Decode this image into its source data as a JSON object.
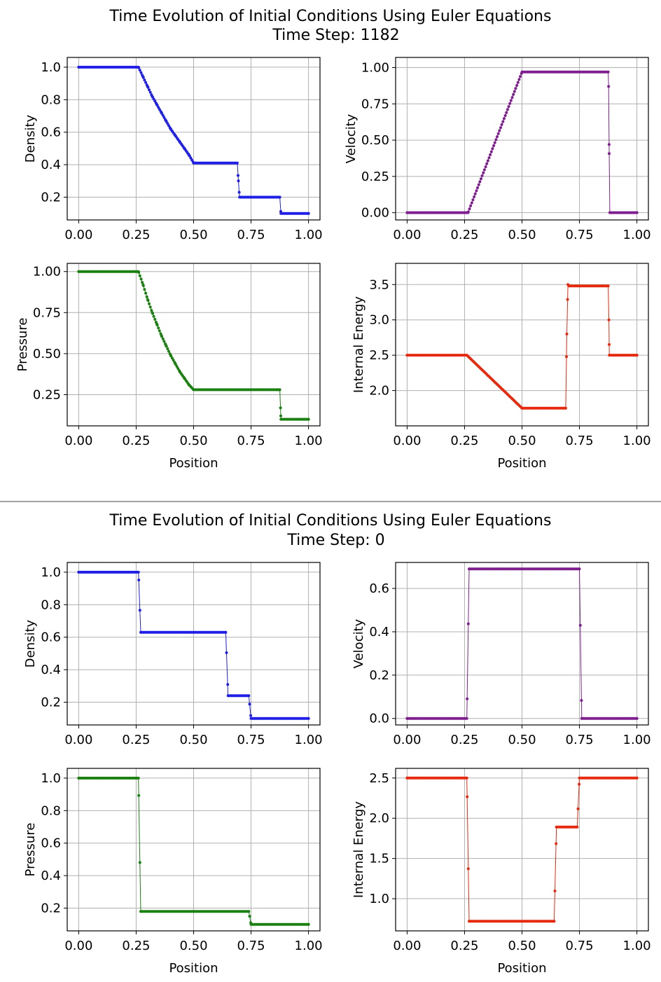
{
  "figures": [
    {
      "title_line1": "Time Evolution of Initial Conditions Using Euler Equations",
      "title_line2": "Time Step: 1182"
    },
    {
      "title_line1": "Time Evolution of Initial Conditions Using Euler Equations",
      "title_line2": "Time Step: 0"
    }
  ],
  "chart_data": [
    {
      "figure": 0,
      "type": "line",
      "ylabel": "Density",
      "xlabel": "",
      "color": "#1f1fe6",
      "xlim": [
        -0.05,
        1.05
      ],
      "ylim": [
        0.06,
        1.06
      ],
      "xticks": [
        0.0,
        0.25,
        0.5,
        0.75,
        1.0
      ],
      "xtick_labels": [
        "0.00",
        "0.25",
        "0.50",
        "0.75",
        "1.00"
      ],
      "yticks": [
        0.2,
        0.4,
        0.6,
        0.8,
        1.0
      ],
      "ytick_labels": [
        "0.2",
        "0.4",
        "0.6",
        "0.8",
        "1.0"
      ],
      "grid": true,
      "x": [
        0.0,
        0.26,
        0.28,
        0.3,
        0.32,
        0.34,
        0.36,
        0.38,
        0.4,
        0.42,
        0.44,
        0.46,
        0.48,
        0.5,
        0.69,
        0.695,
        0.7,
        0.875,
        0.88,
        1.0
      ],
      "y": [
        1.0,
        1.0,
        0.94,
        0.88,
        0.82,
        0.77,
        0.72,
        0.67,
        0.62,
        0.58,
        0.54,
        0.5,
        0.46,
        0.41,
        0.41,
        0.3,
        0.2,
        0.2,
        0.1,
        0.1
      ]
    },
    {
      "figure": 0,
      "type": "line",
      "ylabel": "Velocity",
      "xlabel": "",
      "color": "#7f1f8f",
      "xlim": [
        -0.05,
        1.05
      ],
      "ylim": [
        -0.05,
        1.07
      ],
      "xticks": [
        0.0,
        0.25,
        0.5,
        0.75,
        1.0
      ],
      "xtick_labels": [
        "0.00",
        "0.25",
        "0.50",
        "0.75",
        "1.00"
      ],
      "yticks": [
        0.0,
        0.25,
        0.5,
        0.75,
        1.0
      ],
      "ytick_labels": [
        "0.00",
        "0.25",
        "0.50",
        "0.75",
        "1.00"
      ],
      "grid": true,
      "x": [
        0.0,
        0.265,
        0.5,
        0.875,
        0.877,
        0.879,
        0.882,
        1.0
      ],
      "y": [
        0.0,
        0.0,
        0.97,
        0.97,
        0.87,
        0.47,
        0.0,
        0.0
      ]
    },
    {
      "figure": 0,
      "type": "line",
      "ylabel": "Pressure",
      "xlabel": "Position",
      "color": "#1a8010",
      "xlim": [
        -0.05,
        1.05
      ],
      "ylim": [
        0.06,
        1.05
      ],
      "xticks": [
        0.0,
        0.25,
        0.5,
        0.75,
        1.0
      ],
      "xtick_labels": [
        "0.00",
        "0.25",
        "0.50",
        "0.75",
        "1.00"
      ],
      "yticks": [
        0.25,
        0.5,
        0.75,
        1.0
      ],
      "ytick_labels": [
        "0.25",
        "0.50",
        "0.75",
        "1.00"
      ],
      "grid": true,
      "x": [
        0.0,
        0.26,
        0.28,
        0.3,
        0.32,
        0.34,
        0.36,
        0.38,
        0.4,
        0.42,
        0.44,
        0.46,
        0.48,
        0.5,
        0.865,
        0.875,
        0.878,
        0.88,
        1.0
      ],
      "y": [
        1.0,
        1.0,
        0.92,
        0.83,
        0.75,
        0.68,
        0.61,
        0.55,
        0.49,
        0.44,
        0.39,
        0.35,
        0.31,
        0.28,
        0.28,
        0.28,
        0.17,
        0.1,
        0.1
      ]
    },
    {
      "figure": 0,
      "type": "line",
      "ylabel": "Internal Energy",
      "xlabel": "Position",
      "color": "#e62a0f",
      "xlim": [
        -0.05,
        1.05
      ],
      "ylim": [
        1.5,
        3.8
      ],
      "xticks": [
        0.0,
        0.25,
        0.5,
        0.75,
        1.0
      ],
      "xtick_labels": [
        "0.00",
        "0.25",
        "0.50",
        "0.75",
        "1.00"
      ],
      "yticks": [
        2.0,
        2.5,
        3.0,
        3.5
      ],
      "ytick_labels": [
        "2.0",
        "2.5",
        "3.0",
        "3.5"
      ],
      "grid": true,
      "x": [
        0.0,
        0.26,
        0.5,
        0.69,
        0.695,
        0.7,
        0.705,
        0.875,
        0.878,
        0.88,
        1.0
      ],
      "y": [
        2.5,
        2.5,
        1.75,
        1.75,
        2.8,
        3.5,
        3.48,
        3.48,
        3.0,
        2.5,
        2.5
      ]
    },
    {
      "figure": 1,
      "type": "line",
      "ylabel": "Density",
      "xlabel": "",
      "color": "#1f1fe6",
      "xlim": [
        -0.05,
        1.05
      ],
      "ylim": [
        0.06,
        1.06
      ],
      "xticks": [
        0.0,
        0.25,
        0.5,
        0.75,
        1.0
      ],
      "xtick_labels": [
        "0.00",
        "0.25",
        "0.50",
        "0.75",
        "1.00"
      ],
      "yticks": [
        0.2,
        0.4,
        0.6,
        0.8,
        1.0
      ],
      "ytick_labels": [
        "0.2",
        "0.4",
        "0.6",
        "0.8",
        "1.0"
      ],
      "grid": true,
      "x": [
        0.0,
        0.26,
        0.27,
        0.64,
        0.65,
        0.74,
        0.75,
        1.0
      ],
      "y": [
        1.0,
        1.0,
        0.63,
        0.63,
        0.24,
        0.24,
        0.1,
        0.1
      ]
    },
    {
      "figure": 1,
      "type": "line",
      "ylabel": "Velocity",
      "xlabel": "",
      "color": "#7f1f8f",
      "xlim": [
        -0.05,
        1.05
      ],
      "ylim": [
        -0.03,
        0.72
      ],
      "xticks": [
        0.0,
        0.25,
        0.5,
        0.75,
        1.0
      ],
      "xtick_labels": [
        "0.00",
        "0.25",
        "0.50",
        "0.75",
        "1.00"
      ],
      "yticks": [
        0.0,
        0.2,
        0.4,
        0.6
      ],
      "ytick_labels": [
        "0.0",
        "0.2",
        "0.4",
        "0.6"
      ],
      "grid": true,
      "x": [
        0.0,
        0.26,
        0.27,
        0.75,
        0.76,
        1.0
      ],
      "y": [
        0.0,
        0.0,
        0.69,
        0.69,
        0.0,
        0.0
      ]
    },
    {
      "figure": 1,
      "type": "line",
      "ylabel": "Pressure",
      "xlabel": "Position",
      "color": "#1a8010",
      "xlim": [
        -0.05,
        1.05
      ],
      "ylim": [
        0.06,
        1.06
      ],
      "xticks": [
        0.0,
        0.25,
        0.5,
        0.75,
        1.0
      ],
      "xtick_labels": [
        "0.00",
        "0.25",
        "0.50",
        "0.75",
        "1.00"
      ],
      "yticks": [
        0.2,
        0.4,
        0.6,
        0.8,
        1.0
      ],
      "ytick_labels": [
        "0.2",
        "0.4",
        "0.6",
        "0.8",
        "1.0"
      ],
      "grid": true,
      "x": [
        0.0,
        0.26,
        0.27,
        0.74,
        0.75,
        1.0
      ],
      "y": [
        1.0,
        1.0,
        0.18,
        0.18,
        0.1,
        0.1
      ]
    },
    {
      "figure": 1,
      "type": "line",
      "ylabel": "Internal Energy",
      "xlabel": "Position",
      "color": "#e62a0f",
      "xlim": [
        -0.05,
        1.05
      ],
      "ylim": [
        0.6,
        2.62
      ],
      "xticks": [
        0.0,
        0.25,
        0.5,
        0.75,
        1.0
      ],
      "xtick_labels": [
        "0.00",
        "0.25",
        "0.50",
        "0.75",
        "1.00"
      ],
      "yticks": [
        1.0,
        1.5,
        2.0,
        2.5
      ],
      "ytick_labels": [
        "1.0",
        "1.5",
        "2.0",
        "2.5"
      ],
      "grid": true,
      "x": [
        0.0,
        0.26,
        0.27,
        0.64,
        0.65,
        0.74,
        0.75,
        1.0
      ],
      "y": [
        2.5,
        2.5,
        0.72,
        0.72,
        1.89,
        1.89,
        2.5,
        2.5
      ]
    }
  ]
}
